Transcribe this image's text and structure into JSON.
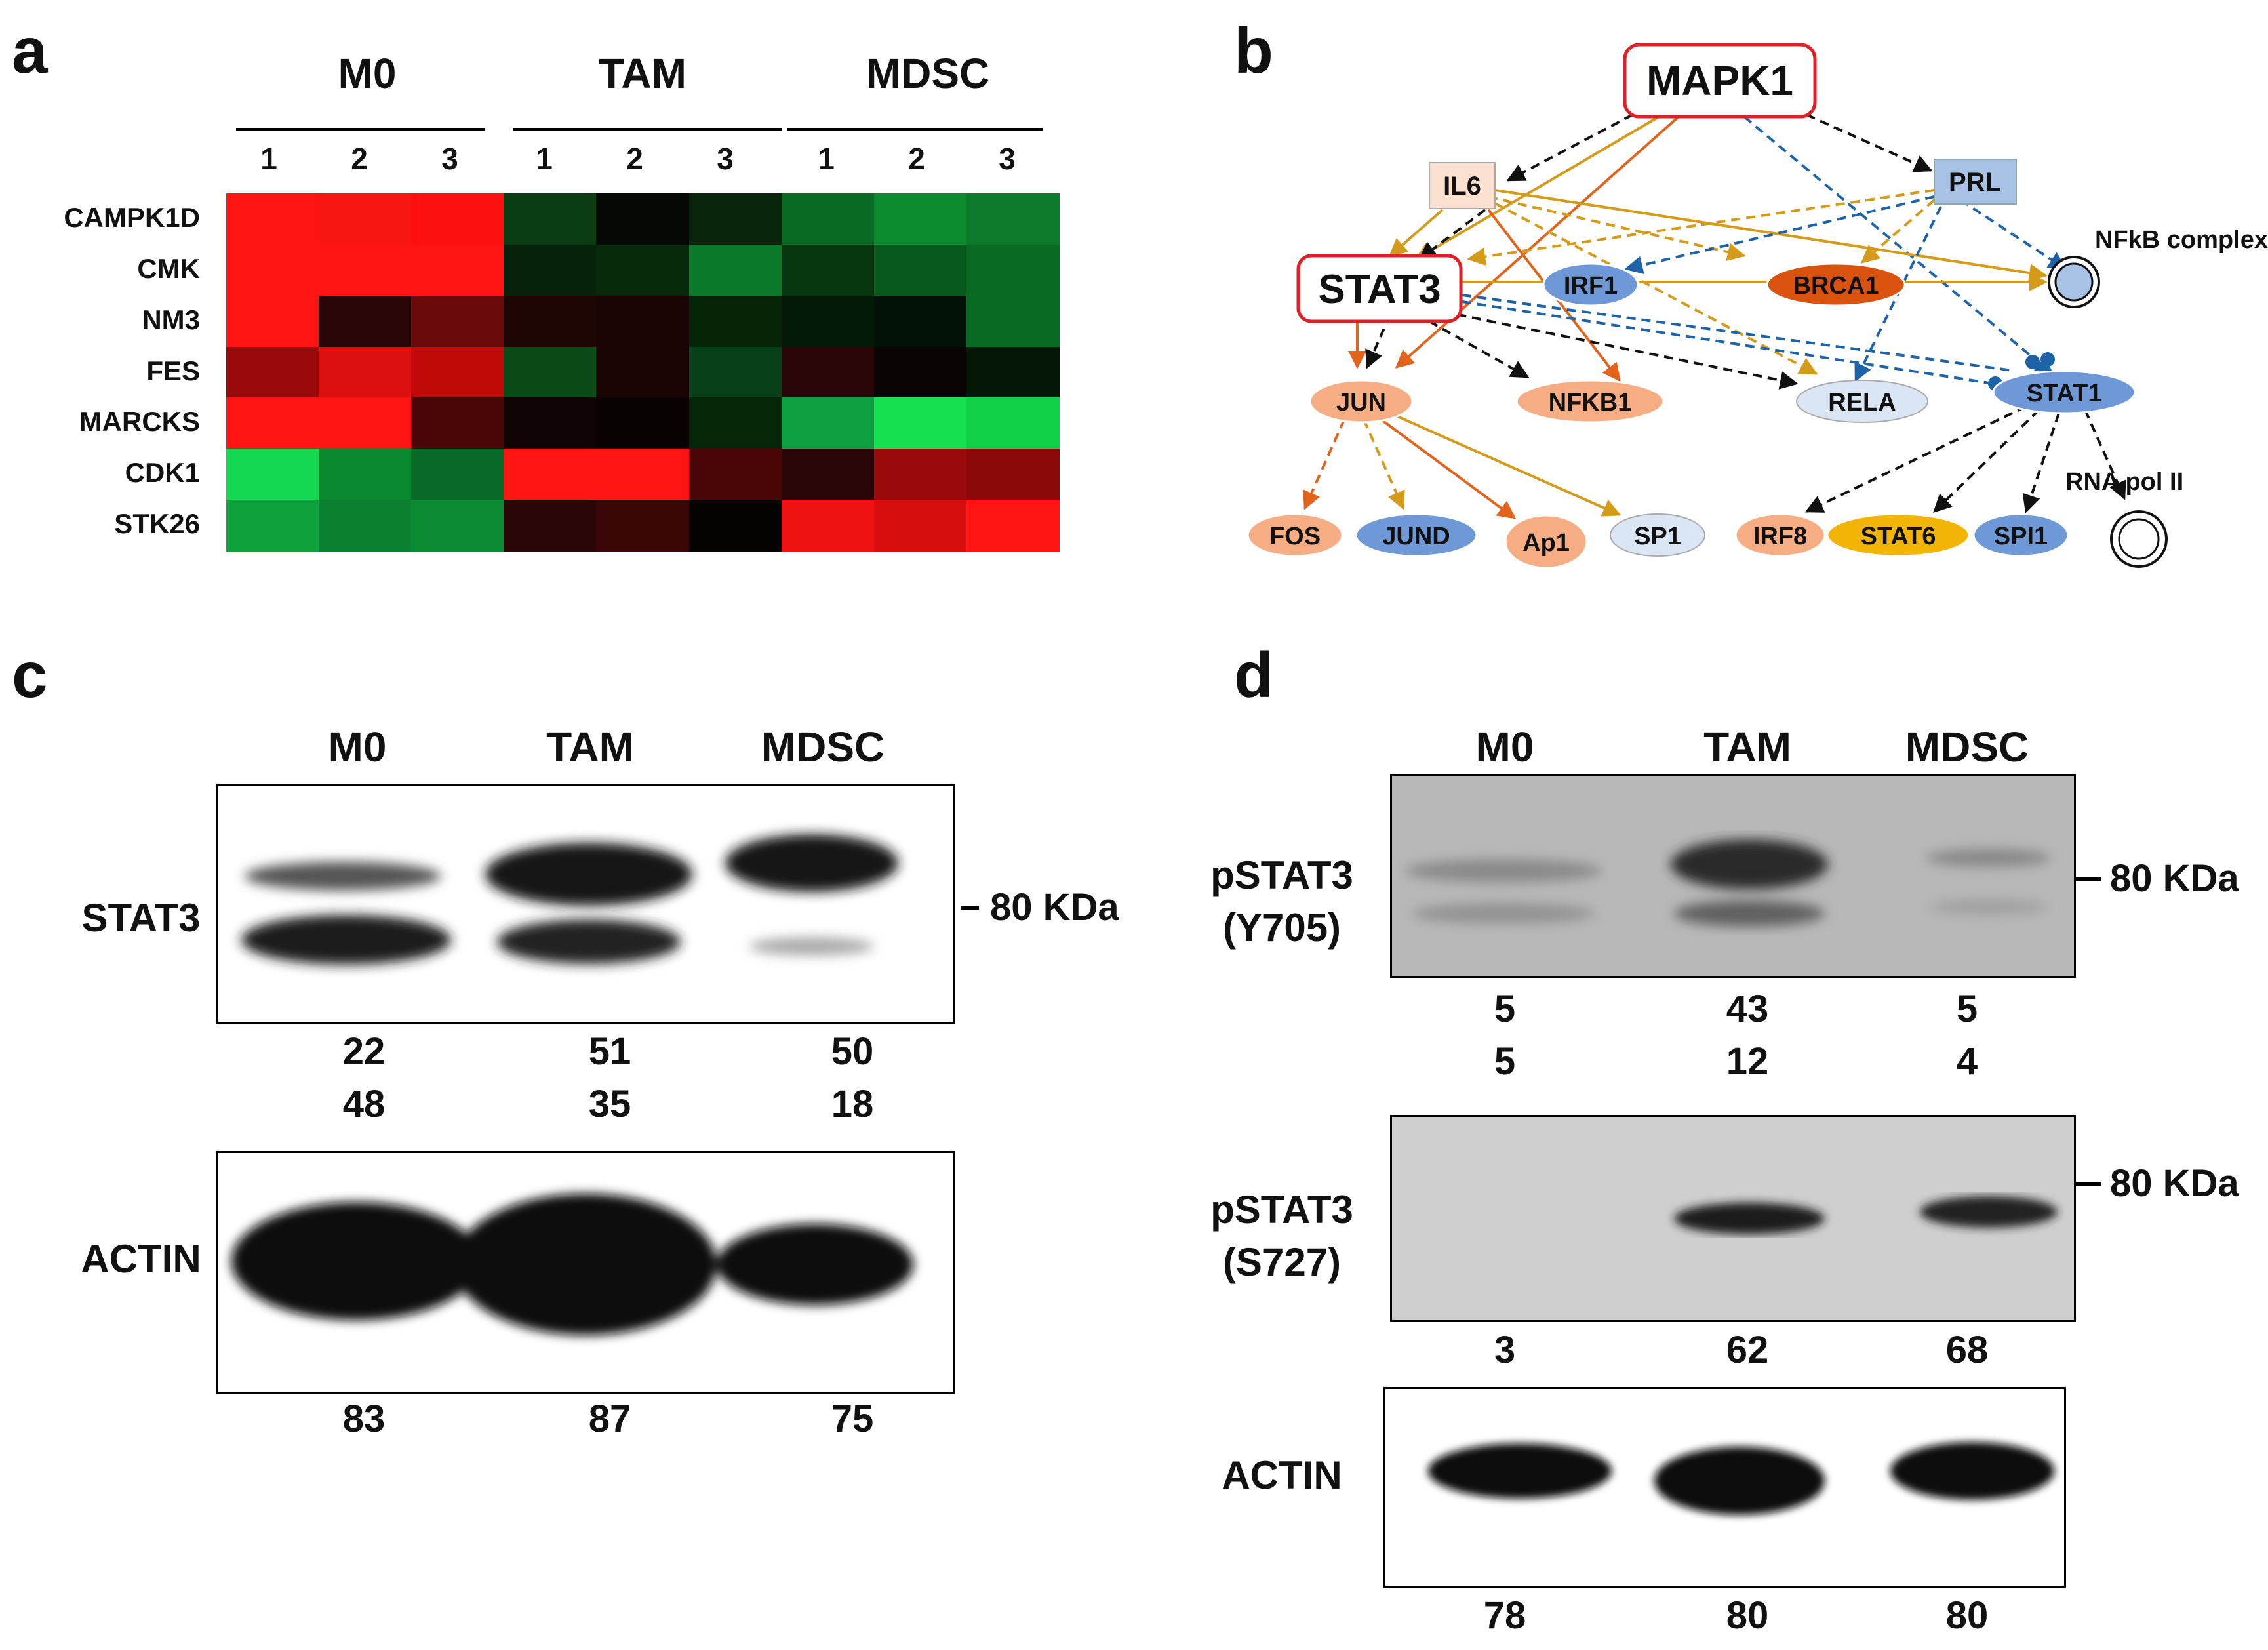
{
  "panel_a": {
    "label": "a",
    "groups": [
      "M0",
      "TAM",
      "MDSC"
    ],
    "lanes": [
      "1",
      "2",
      "3",
      "1",
      "2",
      "3",
      "1",
      "2",
      "3"
    ],
    "genes": [
      "CAMPK1D",
      "CMK",
      "NM3",
      "FES",
      "MARCKS",
      "CDK1",
      "STK26"
    ],
    "heatmap_colors": [
      [
        "#ff1414",
        "#f81612",
        "#ff1010",
        "#0a3d12",
        "#050805",
        "#08250c",
        "#0a6a24",
        "#0c8a2e",
        "#0c7a2a"
      ],
      [
        "#ff1414",
        "#ff1414",
        "#ff1414",
        "#06220a",
        "#062a0a",
        "#0a7a2a",
        "#06360e",
        "#085a1c",
        "#0a6a24"
      ],
      [
        "#ff1414",
        "#2a0606",
        "#6a0a0a",
        "#200505",
        "#1a0404",
        "#062408",
        "#041a06",
        "#031206",
        "#0a6a24"
      ],
      [
        "#9a0a0a",
        "#dd1010",
        "#c00a0a",
        "#0a4a16",
        "#1a0404",
        "#08401a",
        "#2a0606",
        "#0a0303",
        "#041606"
      ],
      [
        "#ff1414",
        "#ff1414",
        "#4a0606",
        "#100404",
        "#080202",
        "#06260a",
        "#0ea040",
        "#14e050",
        "#10d048"
      ],
      [
        "#14d850",
        "#0a8a30",
        "#086a26",
        "#ff1414",
        "#ff1414",
        "#4a0606",
        "#2a0606",
        "#9a0a0a",
        "#8a0a0a"
      ],
      [
        "#0ea03a",
        "#0a8030",
        "#0a8a32",
        "#2a0606",
        "#3a0606",
        "#060202",
        "#ee1212",
        "#d80e0e",
        "#ff1414"
      ]
    ]
  },
  "panel_b": {
    "label": "b",
    "nodes": {
      "mapk1": "MAPK1",
      "il6": "IL6",
      "prl": "PRL",
      "nfkb_complex": "NFkB complex",
      "stat3": "STAT3",
      "irf1": "IRF1",
      "brca1": "BRCA1",
      "jun": "JUN",
      "nfkb1": "NFKB1",
      "rela": "RELA",
      "stat1": "STAT1",
      "rna_pol": "RNA pol II",
      "fos": "FOS",
      "jund": "JUND",
      "ap1": "Ap1",
      "sp1": "SP1",
      "irf8": "IRF8",
      "stat6": "STAT6",
      "spi1": "SPI1"
    },
    "colors": {
      "highlight_red": "#e21f26",
      "orange_edge": "#e2641c",
      "gold_edge": "#d49a1a",
      "blue_edge": "#1e63a8",
      "black_edge": "#111111",
      "up_light": "#f7ad83",
      "up_strong": "#d9530f",
      "down": "#6f98d6",
      "down_light": "#dbe6f4",
      "stat6_fill": "#f2b405"
    }
  },
  "panel_c": {
    "label": "c",
    "columns": [
      "M0",
      "TAM",
      "MDSC"
    ],
    "stat3": {
      "label": "STAT3",
      "marker": "80 KDa",
      "values_upper": [
        "22",
        "51",
        "50"
      ],
      "values_lower": [
        "48",
        "35",
        "18"
      ]
    },
    "actin": {
      "label": "ACTIN",
      "values": [
        "83",
        "87",
        "75"
      ]
    }
  },
  "panel_d": {
    "label": "d",
    "columns": [
      "M0",
      "TAM",
      "MDSC"
    ],
    "pstat3_y705": {
      "label_line1": "pSTAT3",
      "label_line2": "(Y705)",
      "marker": "80 KDa",
      "values_upper": [
        "5",
        "43",
        "5"
      ],
      "values_lower": [
        "5",
        "12",
        "4"
      ]
    },
    "pstat3_s727": {
      "label_line1": "pSTAT3",
      "label_line2": "(S727)",
      "marker": "80 KDa",
      "values": [
        "3",
        "62",
        "68"
      ]
    },
    "actin": {
      "label": "ACTIN",
      "values": [
        "78",
        "80",
        "80"
      ]
    }
  }
}
